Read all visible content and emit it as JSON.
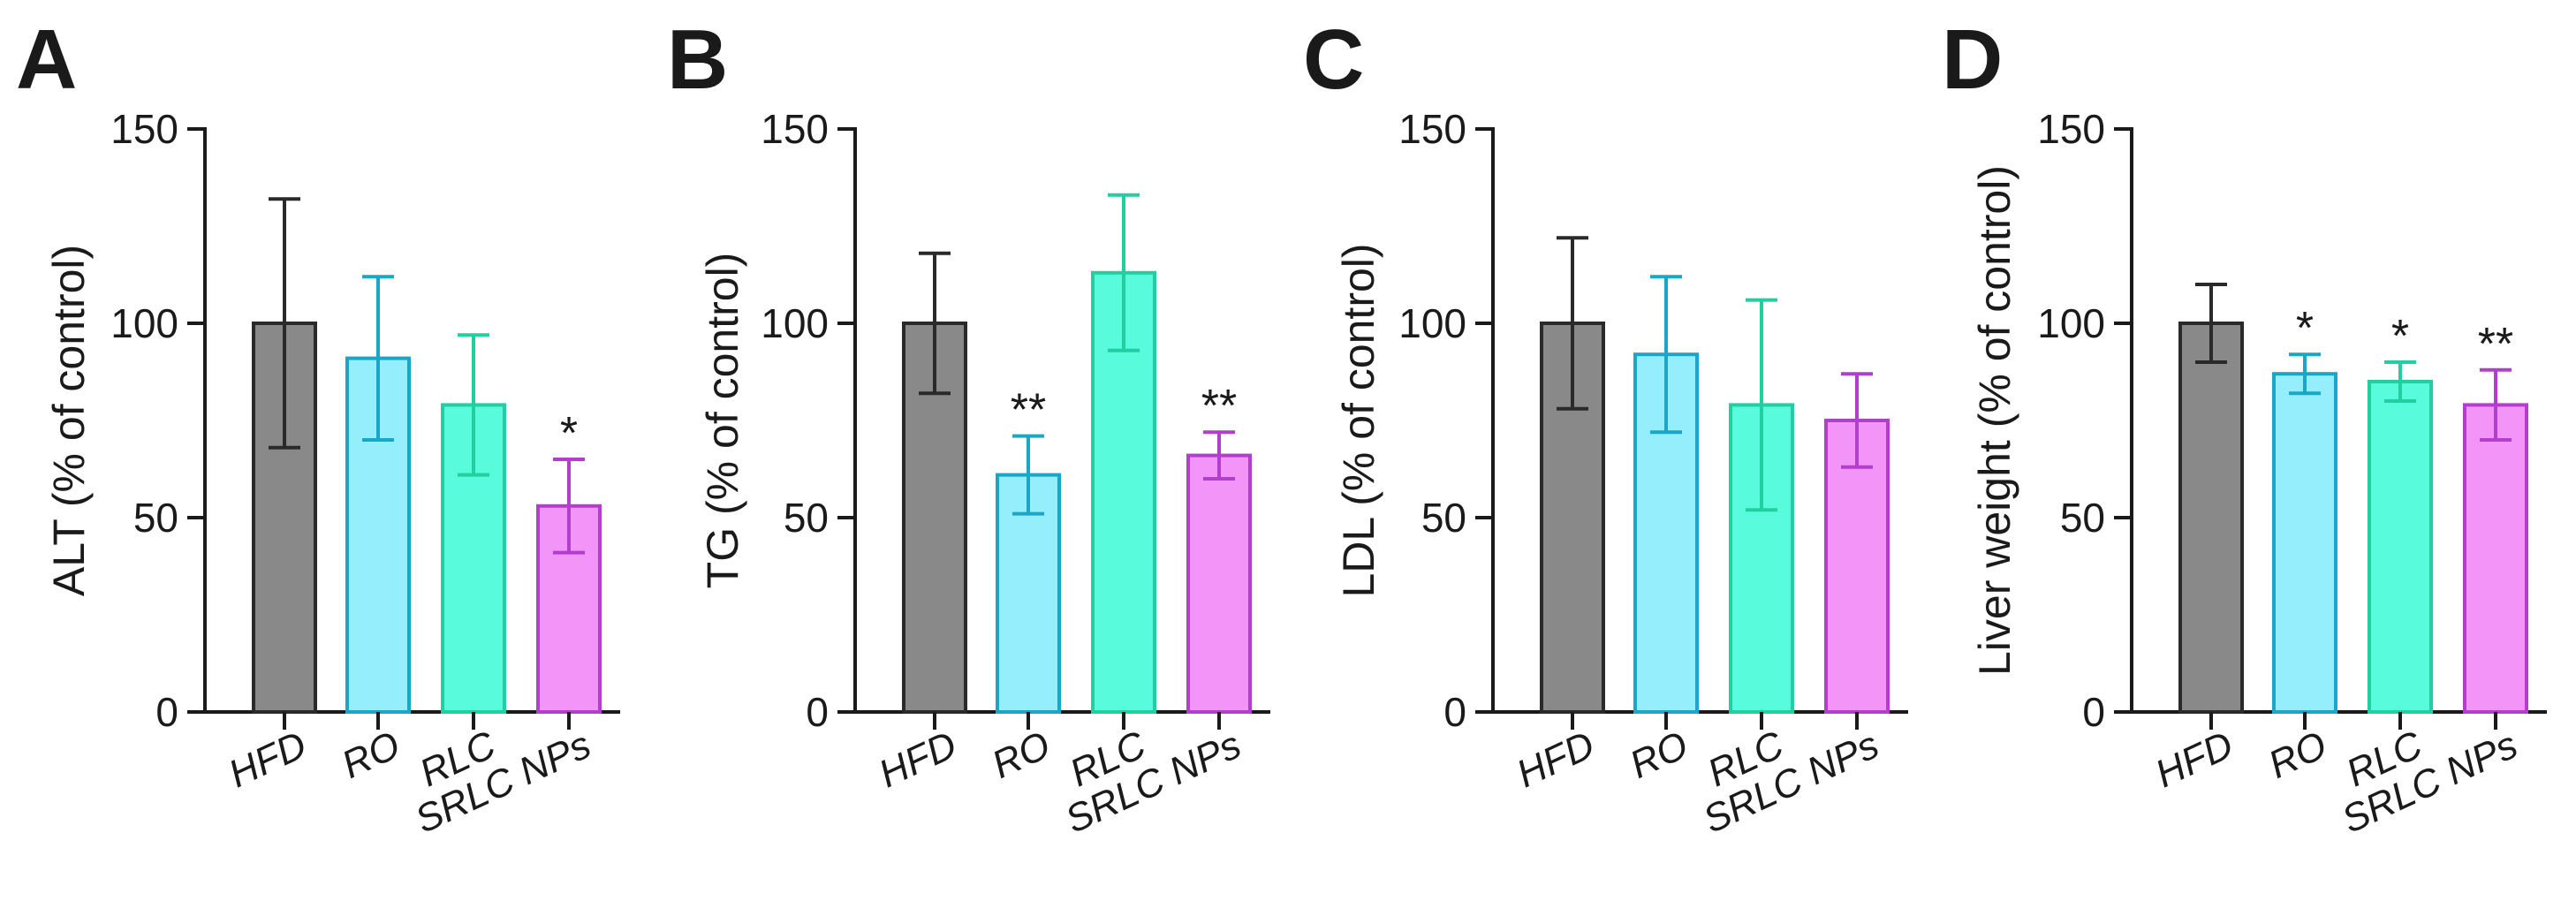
{
  "figure": {
    "panel_letters": [
      "A",
      "B",
      "C",
      "D"
    ]
  },
  "colors": {
    "axis": "#1a1a1a",
    "categories": [
      {
        "fill": "#898989",
        "stroke": "#2a2a2a"
      },
      {
        "fill": "#94eefb",
        "stroke": "#1aa6c8"
      },
      {
        "fill": "#58fcdc",
        "stroke": "#22cfa0"
      },
      {
        "fill": "#f395f8",
        "stroke": "#b23fcc"
      }
    ]
  },
  "chart_data": [
    {
      "type": "bar",
      "panel": "A",
      "title": "",
      "xlabel": "",
      "ylabel": "ALT (% of control)",
      "ylim": [
        0,
        150
      ],
      "yticks": [
        0,
        50,
        100,
        150
      ],
      "categories": [
        "HFD",
        "RO",
        "RLC",
        "SRLC NPs"
      ],
      "values": [
        100,
        91,
        79,
        53
      ],
      "errors": [
        32,
        21,
        18,
        12
      ],
      "significance": [
        "",
        "",
        "",
        "*"
      ]
    },
    {
      "type": "bar",
      "panel": "B",
      "title": "",
      "xlabel": "",
      "ylabel": "TG (% of control)",
      "ylim": [
        0,
        150
      ],
      "yticks": [
        0,
        50,
        100,
        150
      ],
      "categories": [
        "HFD",
        "RO",
        "RLC",
        "SRLC NPs"
      ],
      "values": [
        100,
        61,
        113,
        66
      ],
      "errors": [
        18,
        10,
        20,
        6
      ],
      "significance": [
        "",
        "**",
        "",
        "**"
      ]
    },
    {
      "type": "bar",
      "panel": "C",
      "title": "",
      "xlabel": "",
      "ylabel": "LDL (% of control)",
      "ylim": [
        0,
        150
      ],
      "yticks": [
        0,
        50,
        100,
        150
      ],
      "categories": [
        "HFD",
        "RO",
        "RLC",
        "SRLC NPs"
      ],
      "values": [
        100,
        92,
        79,
        75
      ],
      "errors": [
        22,
        20,
        27,
        12
      ],
      "significance": [
        "",
        "",
        "",
        ""
      ]
    },
    {
      "type": "bar",
      "panel": "D",
      "title": "",
      "xlabel": "",
      "ylabel": "Liver weight (% of control)",
      "ylim": [
        0,
        150
      ],
      "yticks": [
        0,
        50,
        100,
        150
      ],
      "categories": [
        "HFD",
        "RO",
        "RLC",
        "SRLC NPs"
      ],
      "values": [
        100,
        87,
        85,
        79
      ],
      "errors": [
        10,
        5,
        5,
        9
      ],
      "significance": [
        "",
        "*",
        "*",
        "**"
      ]
    }
  ]
}
